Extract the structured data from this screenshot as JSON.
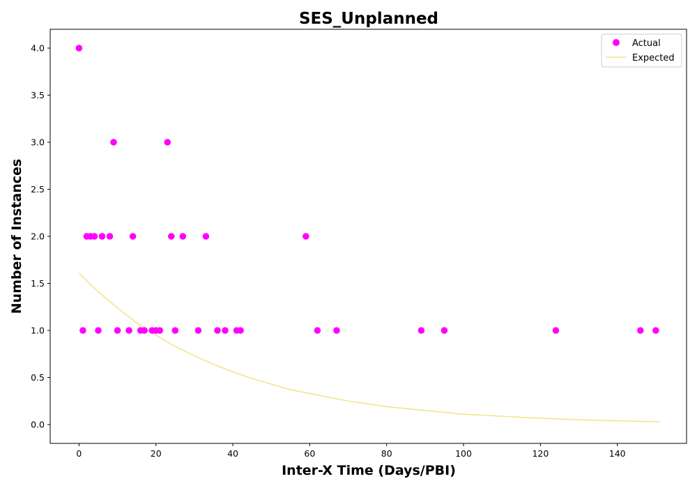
{
  "chart_data": {
    "type": "scatter",
    "title": "SES_Unplanned",
    "xlabel": "Inter-X Time (Days/PBI)",
    "ylabel": "Number of Instances",
    "xlim": [
      -7.5,
      158
    ],
    "ylim": [
      -0.2,
      4.2
    ],
    "xticks": [
      0,
      20,
      40,
      60,
      80,
      100,
      120,
      140
    ],
    "yticks": [
      0.0,
      0.5,
      1.0,
      1.5,
      2.0,
      2.5,
      3.0,
      3.5,
      4.0
    ],
    "xtick_labels": [
      "0",
      "20",
      "40",
      "60",
      "80",
      "100",
      "120",
      "140"
    ],
    "ytick_labels": [
      "0.0",
      "0.5",
      "1.0",
      "1.5",
      "2.0",
      "2.5",
      "3.0",
      "3.5",
      "4.0"
    ],
    "grid": false,
    "legend_position": "top-right",
    "colors": {
      "actual": "#ff00ff",
      "expected": "#f0e68c"
    },
    "series": [
      {
        "name": "Actual",
        "kind": "scatter",
        "points": [
          [
            0,
            4
          ],
          [
            1,
            1
          ],
          [
            2,
            2
          ],
          [
            3,
            2
          ],
          [
            4,
            2
          ],
          [
            5,
            1
          ],
          [
            6,
            2
          ],
          [
            8,
            2
          ],
          [
            9,
            3
          ],
          [
            10,
            1
          ],
          [
            13,
            1
          ],
          [
            14,
            2
          ],
          [
            16,
            1
          ],
          [
            17,
            1
          ],
          [
            19,
            1
          ],
          [
            20,
            1
          ],
          [
            21,
            1
          ],
          [
            23,
            3
          ],
          [
            24,
            2
          ],
          [
            25,
            1
          ],
          [
            27,
            2
          ],
          [
            31,
            1
          ],
          [
            33,
            2
          ],
          [
            36,
            1
          ],
          [
            38,
            1
          ],
          [
            41,
            1
          ],
          [
            42,
            1
          ],
          [
            59,
            2
          ],
          [
            62,
            1
          ],
          [
            67,
            1
          ],
          [
            89,
            1
          ],
          [
            95,
            1
          ],
          [
            124,
            1
          ],
          [
            146,
            1
          ],
          [
            150,
            1
          ]
        ]
      },
      {
        "name": "Expected",
        "kind": "line",
        "points": [
          [
            0,
            1.61
          ],
          [
            5,
            1.41
          ],
          [
            10,
            1.24
          ],
          [
            15,
            1.08
          ],
          [
            20,
            0.95
          ],
          [
            25,
            0.83
          ],
          [
            30,
            0.73
          ],
          [
            35,
            0.64
          ],
          [
            40,
            0.56
          ],
          [
            45,
            0.49
          ],
          [
            50,
            0.43
          ],
          [
            55,
            0.37
          ],
          [
            60,
            0.33
          ],
          [
            65,
            0.29
          ],
          [
            70,
            0.25
          ],
          [
            75,
            0.22
          ],
          [
            80,
            0.19
          ],
          [
            85,
            0.17
          ],
          [
            90,
            0.15
          ],
          [
            95,
            0.13
          ],
          [
            100,
            0.11
          ],
          [
            105,
            0.1
          ],
          [
            110,
            0.088
          ],
          [
            115,
            0.077
          ],
          [
            120,
            0.067
          ],
          [
            125,
            0.059
          ],
          [
            130,
            0.052
          ],
          [
            135,
            0.045
          ],
          [
            140,
            0.04
          ],
          [
            145,
            0.035
          ],
          [
            151,
            0.03
          ]
        ]
      }
    ]
  }
}
